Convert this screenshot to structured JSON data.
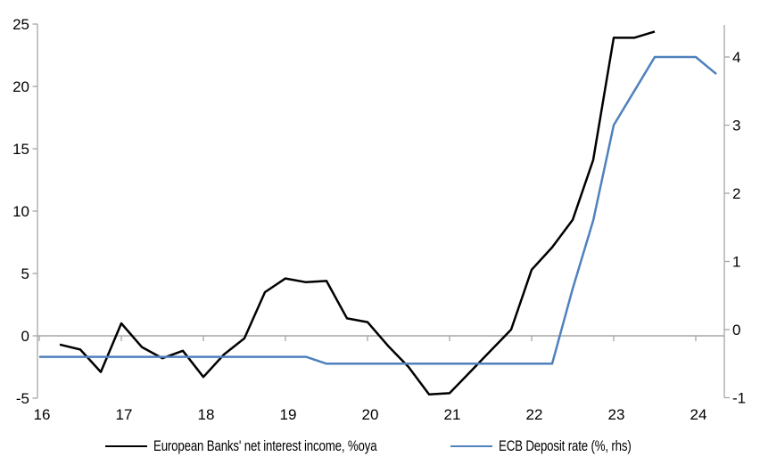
{
  "chart_data": {
    "type": "line",
    "title": "",
    "x_axis": {
      "tick_labels": [
        "16",
        "17",
        "18",
        "19",
        "20",
        "21",
        "22",
        "23",
        "24"
      ],
      "tick_values": [
        16,
        17,
        18,
        19,
        20,
        21,
        22,
        23,
        24
      ],
      "range": [
        16,
        24.35
      ]
    },
    "left_axis": {
      "ticks": [
        -5,
        0,
        5,
        10,
        15,
        20,
        25
      ],
      "range": [
        -5,
        25
      ]
    },
    "right_axis": {
      "ticks": [
        -1,
        0,
        1,
        2,
        3,
        4
      ],
      "range": [
        -1,
        4.5
      ]
    },
    "grid": "zero-line-only",
    "legend_position": "bottom",
    "series": [
      {
        "slug": "european-banks-nii",
        "name": "European Banks' net interest income, %oya",
        "axis": "left",
        "color": "#000000",
        "x": [
          16.25,
          16.5,
          16.75,
          17.0,
          17.25,
          17.5,
          17.75,
          18.0,
          18.25,
          18.5,
          18.75,
          19.0,
          19.25,
          19.5,
          19.75,
          20.0,
          20.25,
          20.5,
          20.75,
          21.0,
          21.25,
          21.5,
          21.75,
          22.0,
          22.25,
          22.5,
          22.75,
          23.0,
          23.25,
          23.5
        ],
        "values": [
          -0.7,
          -1.1,
          -2.9,
          1.0,
          -0.9,
          -1.8,
          -1.2,
          -3.3,
          -1.5,
          -0.2,
          3.5,
          4.6,
          4.3,
          4.4,
          1.4,
          1.1,
          -0.8,
          -2.5,
          -4.7,
          -4.6,
          -2.9,
          -1.2,
          0.5,
          5.3,
          7.1,
          9.3,
          14.1,
          23.9,
          23.9,
          24.4
        ]
      },
      {
        "slug": "ecb-deposit-rate",
        "name": "ECB Deposit rate (%, rhs)",
        "axis": "right",
        "color": "#4f81bd",
        "x": [
          16.0,
          16.25,
          16.5,
          16.75,
          17.0,
          17.25,
          17.5,
          17.75,
          18.0,
          18.25,
          18.5,
          18.75,
          19.0,
          19.25,
          19.5,
          19.75,
          20.0,
          20.25,
          20.5,
          20.75,
          21.0,
          21.25,
          21.5,
          21.75,
          22.0,
          22.25,
          22.5,
          22.75,
          23.0,
          23.25,
          23.5,
          23.75,
          24.0,
          24.25
        ],
        "values": [
          -0.4,
          -0.4,
          -0.4,
          -0.4,
          -0.4,
          -0.4,
          -0.4,
          -0.4,
          -0.4,
          -0.4,
          -0.4,
          -0.4,
          -0.4,
          -0.4,
          -0.5,
          -0.5,
          -0.5,
          -0.5,
          -0.5,
          -0.5,
          -0.5,
          -0.5,
          -0.5,
          -0.5,
          -0.5,
          -0.5,
          0.6,
          1.6,
          3.0,
          3.5,
          4.0,
          4.0,
          4.0,
          3.75
        ]
      }
    ]
  },
  "legend": {
    "items": [
      {
        "label": "European Banks' net interest income, %oya",
        "color": "#000000"
      },
      {
        "label": "ECB Deposit rate (%, rhs)",
        "color": "#4f81bd"
      }
    ]
  },
  "colors": {
    "background": "#ffffff",
    "axis": "#a6a6a6",
    "text": "#000000",
    "nii_line": "#000000",
    "ecb_line": "#4f81bd"
  }
}
